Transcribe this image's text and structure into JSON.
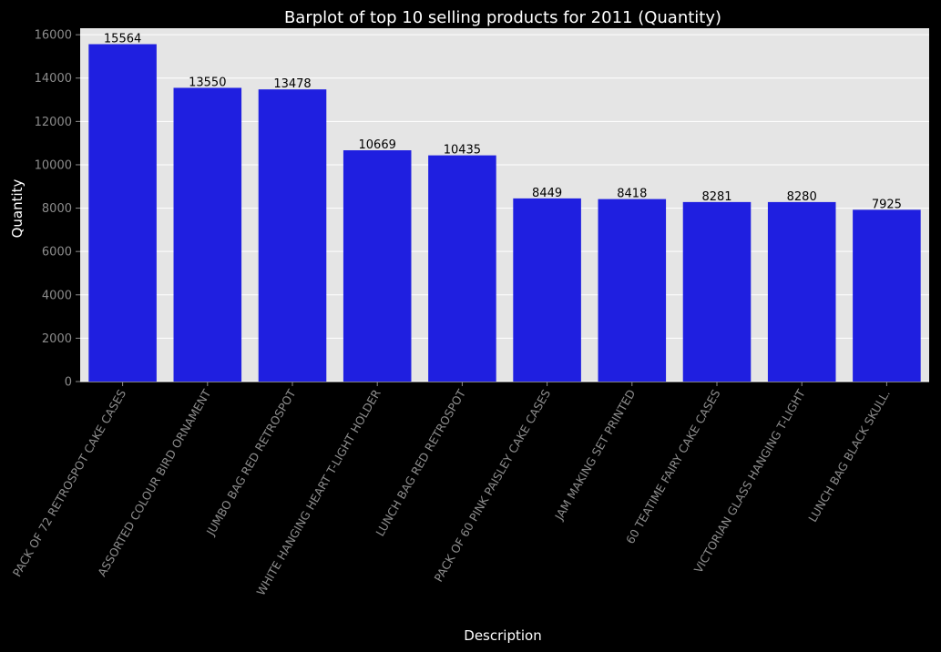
{
  "chart_data": {
    "type": "bar",
    "title": "Barplot of top 10 selling products for 2011 (Quantity)",
    "xlabel": "Description",
    "ylabel": "Quantity",
    "ylim": [
      0,
      16300
    ],
    "yticks": [
      0,
      2000,
      4000,
      6000,
      8000,
      10000,
      12000,
      14000,
      16000
    ],
    "grid": true,
    "categories": [
      "PACK OF 72 RETROSPOT CAKE CASES",
      "ASSORTED COLOUR BIRD ORNAMENT",
      "JUMBO BAG RED RETROSPOT",
      "WHITE HANGING HEART T-LIGHT HOLDER",
      "LUNCH BAG RED RETROSPOT",
      "PACK OF 60 PINK PAISLEY CAKE CASES",
      "JAM MAKING SET PRINTED",
      "60 TEATIME FAIRY CAKE CASES",
      "VICTORIAN GLASS HANGING T-LIGHT",
      "LUNCH BAG  BLACK SKULL."
    ],
    "values": [
      15564,
      13550,
      13478,
      10669,
      10435,
      8449,
      8418,
      8281,
      8280,
      7925
    ],
    "colors": {
      "bar": "#1f1fe0",
      "plot_background": "#e5e5e5",
      "figure_background": "#000000",
      "grid": "#ffffff",
      "tick_text": "#8c8c8c",
      "text": "#ffffff",
      "bar_label": "#000000"
    }
  }
}
